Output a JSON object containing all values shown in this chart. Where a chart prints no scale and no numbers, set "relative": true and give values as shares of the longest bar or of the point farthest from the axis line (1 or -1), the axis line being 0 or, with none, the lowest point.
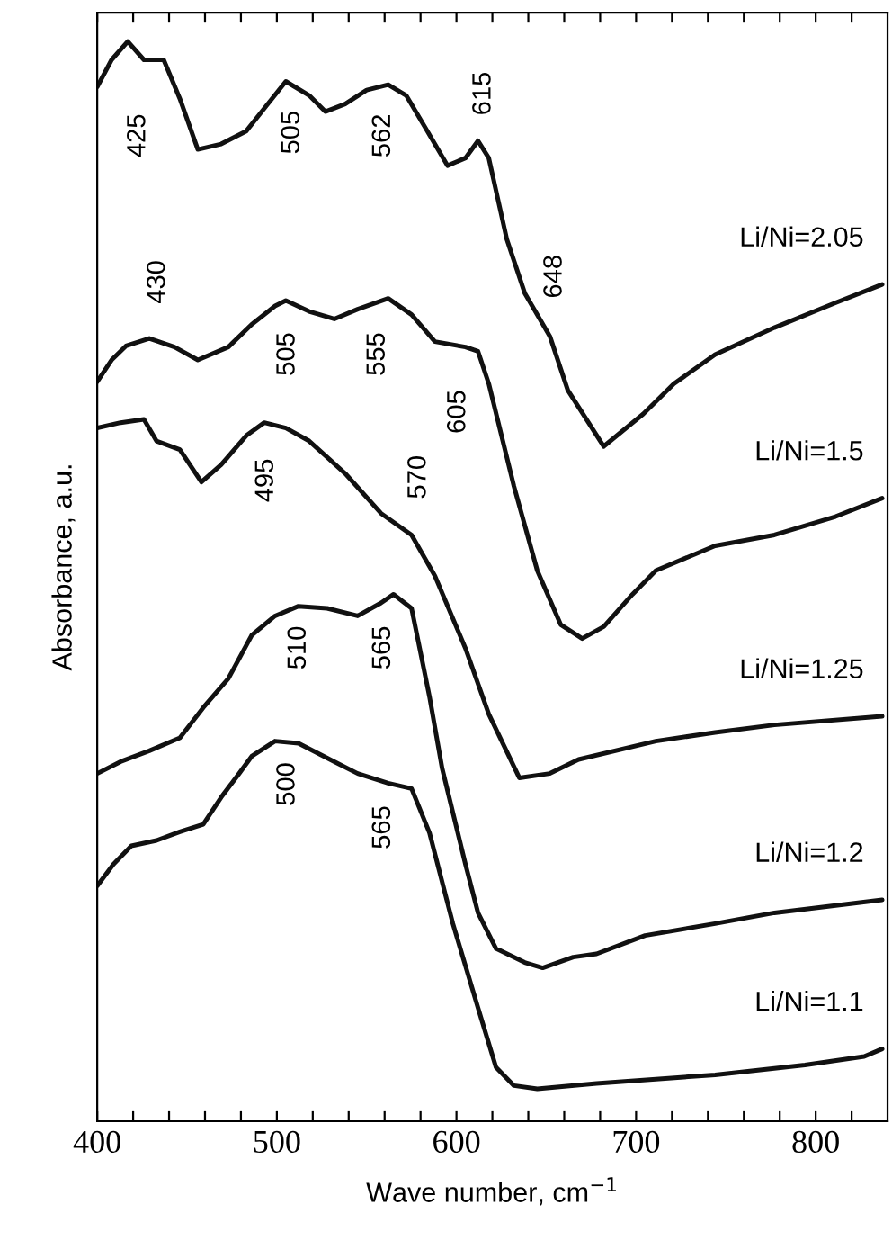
{
  "chart_data": {
    "type": "line",
    "relative": true,
    "xlabel": "Wave number, cm$^{−1}$",
    "ylabel": "Absorbance, a.u.",
    "xlim": [
      400,
      840
    ],
    "xticks": [
      400,
      {
        "value": 420,
        "label": null
      },
      {
        "value": 440,
        "label": null
      },
      {
        "value": 460,
        "label": null
      },
      {
        "value": 480,
        "label": null
      },
      500,
      {
        "value": 520,
        "label": null
      },
      {
        "value": 540,
        "label": null
      },
      {
        "value": 560,
        "label": null
      },
      {
        "value": 580,
        "label": null
      },
      600,
      {
        "value": 620,
        "label": null
      },
      {
        "value": 640,
        "label": null
      },
      {
        "value": 660,
        "label": null
      },
      {
        "value": 680,
        "label": null
      },
      700,
      {
        "value": 720,
        "label": null
      },
      {
        "value": 740,
        "label": null
      },
      {
        "value": 760,
        "label": null
      },
      {
        "value": 780,
        "label": null
      },
      800,
      {
        "value": 820,
        "label": null
      }
    ],
    "grid": false,
    "legend": false,
    "marker": "none",
    "line_style": "solid",
    "series": [
      {
        "name": "Li/Ni=2.05",
        "color": "#111111",
        "x": [
          400,
          408,
          417,
          426,
          437,
          446,
          456,
          469,
          483,
          493,
          505,
          518,
          527,
          538,
          550,
          562,
          572,
          582,
          595,
          605,
          612,
          618,
          628,
          638,
          652,
          662,
          682,
          704,
          721,
          744,
          777,
          811,
          837
        ],
        "values": [
          0.958,
          0.983,
          1.0,
          0.983,
          0.983,
          0.947,
          0.9,
          0.905,
          0.917,
          0.938,
          0.963,
          0.95,
          0.935,
          0.942,
          0.955,
          0.96,
          0.95,
          0.922,
          0.885,
          0.892,
          0.908,
          0.892,
          0.817,
          0.767,
          0.727,
          0.677,
          0.625,
          0.655,
          0.683,
          0.71,
          0.735,
          0.758,
          0.775
        ]
      },
      {
        "name": "Li/Ni=1.5",
        "color": "#111111",
        "x": [
          400,
          408,
          416,
          429,
          443,
          456,
          473,
          486,
          499,
          505,
          518,
          532,
          545,
          562,
          575,
          588,
          605,
          612,
          618,
          632,
          645,
          658,
          670,
          682,
          698,
          711,
          744,
          777,
          811,
          837
        ],
        "values": [
          0.685,
          0.705,
          0.718,
          0.725,
          0.717,
          0.705,
          0.717,
          0.738,
          0.755,
          0.76,
          0.75,
          0.743,
          0.752,
          0.762,
          0.747,
          0.722,
          0.717,
          0.713,
          0.683,
          0.588,
          0.51,
          0.46,
          0.447,
          0.458,
          0.488,
          0.51,
          0.533,
          0.543,
          0.56,
          0.577
        ]
      },
      {
        "name": "Li/Ni=1.25",
        "color": "#111111",
        "x": [
          400,
          413,
          426,
          433,
          446,
          458,
          469,
          483,
          493,
          505,
          518,
          538,
          558,
          575,
          588,
          605,
          618,
          635,
          652,
          668,
          711,
          744,
          777,
          837
        ],
        "values": [
          0.642,
          0.647,
          0.65,
          0.63,
          0.622,
          0.592,
          0.608,
          0.635,
          0.647,
          0.642,
          0.63,
          0.6,
          0.563,
          0.543,
          0.505,
          0.438,
          0.377,
          0.318,
          0.322,
          0.335,
          0.352,
          0.36,
          0.367,
          0.375
        ]
      },
      {
        "name": "Li/Ni=1.2",
        "color": "#111111",
        "x": [
          400,
          413,
          429,
          446,
          459,
          473,
          486,
          499,
          512,
          528,
          545,
          558,
          565,
          575,
          585,
          592,
          605,
          612,
          622,
          638,
          648,
          665,
          678,
          705,
          744,
          777,
          837
        ],
        "values": [
          0.322,
          0.333,
          0.343,
          0.355,
          0.383,
          0.41,
          0.45,
          0.468,
          0.477,
          0.475,
          0.468,
          0.48,
          0.488,
          0.475,
          0.393,
          0.327,
          0.238,
          0.193,
          0.16,
          0.147,
          0.142,
          0.152,
          0.155,
          0.172,
          0.183,
          0.193,
          0.205
        ]
      },
      {
        "name": "Li/Ni=1.1",
        "color": "#111111",
        "x": [
          400,
          409,
          419,
          433,
          446,
          459,
          469,
          479,
          486,
          499,
          512,
          532,
          545,
          562,
          575,
          585,
          598,
          612,
          622,
          632,
          645,
          678,
          744,
          794,
          827,
          837
        ],
        "values": [
          0.218,
          0.238,
          0.255,
          0.26,
          0.268,
          0.275,
          0.3,
          0.322,
          0.338,
          0.352,
          0.35,
          0.333,
          0.322,
          0.313,
          0.308,
          0.267,
          0.183,
          0.105,
          0.05,
          0.033,
          0.03,
          0.035,
          0.043,
          0.052,
          0.06,
          0.067
        ]
      }
    ],
    "annotations": [
      "425",
      "505",
      "562",
      "615",
      "648",
      "430",
      "505",
      "555",
      "605",
      "495",
      "570",
      "510",
      "565",
      "500",
      "565"
    ]
  }
}
